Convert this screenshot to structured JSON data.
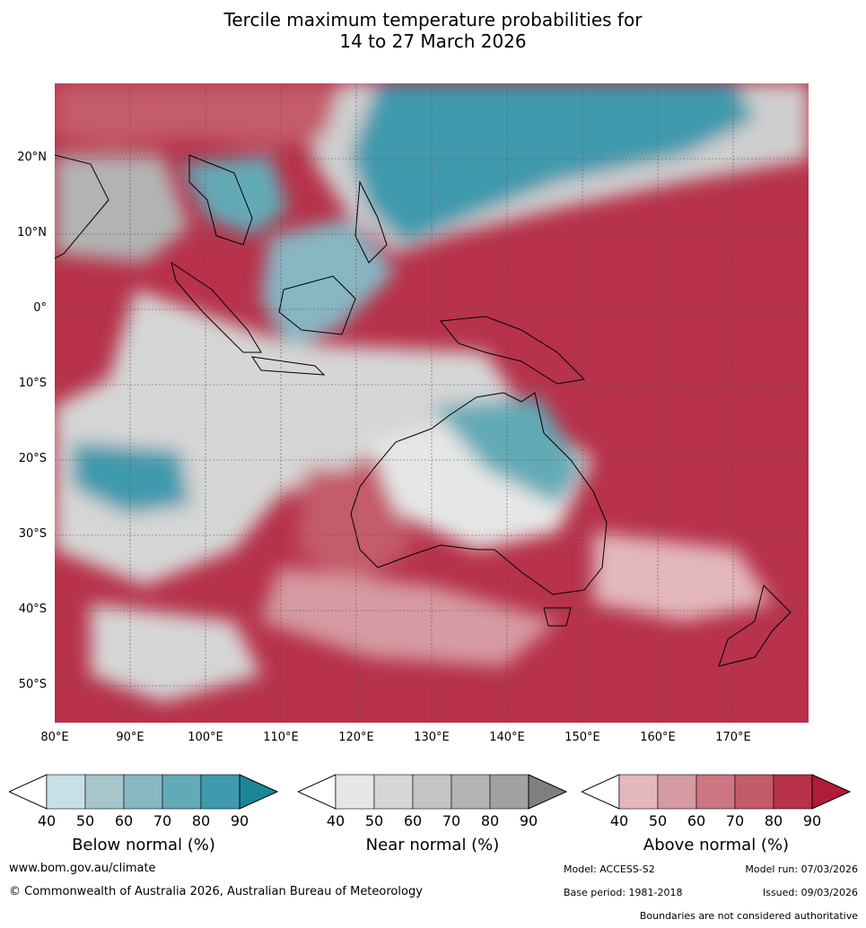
{
  "title": {
    "line1": "Tercile maximum temperature probabilities for",
    "line2": "14 to 27 March 2026"
  },
  "map": {
    "latitude_labels": [
      "20°N",
      "10°N",
      "0°",
      "10°S",
      "20°S",
      "30°S",
      "40°S",
      "50°S"
    ],
    "longitude_labels": [
      "80°E",
      "90°E",
      "100°E",
      "110°E",
      "120°E",
      "130°E",
      "140°E",
      "150°E",
      "160°E",
      "170°E"
    ]
  },
  "legends": [
    {
      "caption": "Below normal (%)",
      "ticks": [
        "40",
        "50",
        "60",
        "70",
        "80",
        "90"
      ],
      "colors": [
        "#ffffff",
        "#c8e1e6",
        "#a6c6cc",
        "#88b6c3",
        "#63aab7",
        "#3f9aad",
        "#1c8599"
      ]
    },
    {
      "caption": "Near normal (%)",
      "ticks": [
        "40",
        "50",
        "60",
        "70",
        "80",
        "90"
      ],
      "colors": [
        "#ffffff",
        "#e6e6e6",
        "#d6d6d6",
        "#c4c4c4",
        "#b3b3b3",
        "#a1a1a1",
        "#7f7f7f"
      ]
    },
    {
      "caption": "Above normal (%)",
      "ticks": [
        "40",
        "50",
        "60",
        "70",
        "80",
        "90"
      ],
      "colors": [
        "#ffffff",
        "#e3b7bd",
        "#d69aa2",
        "#cc7681",
        "#c45b69",
        "#b7324a",
        "#b01c38"
      ]
    }
  ],
  "footer": {
    "website": "www.bom.gov.au/climate",
    "copyright": "© Commonwealth of Australia 2026, Australian Bureau of Meteorology",
    "model": "Model: ACCESS-S2",
    "model_run": "Model run: 07/03/2026",
    "base_period": "Base period: 1981-2018",
    "issued": "Issued: 09/03/2026",
    "disclaimer": "Boundaries are not considered authoritative"
  }
}
